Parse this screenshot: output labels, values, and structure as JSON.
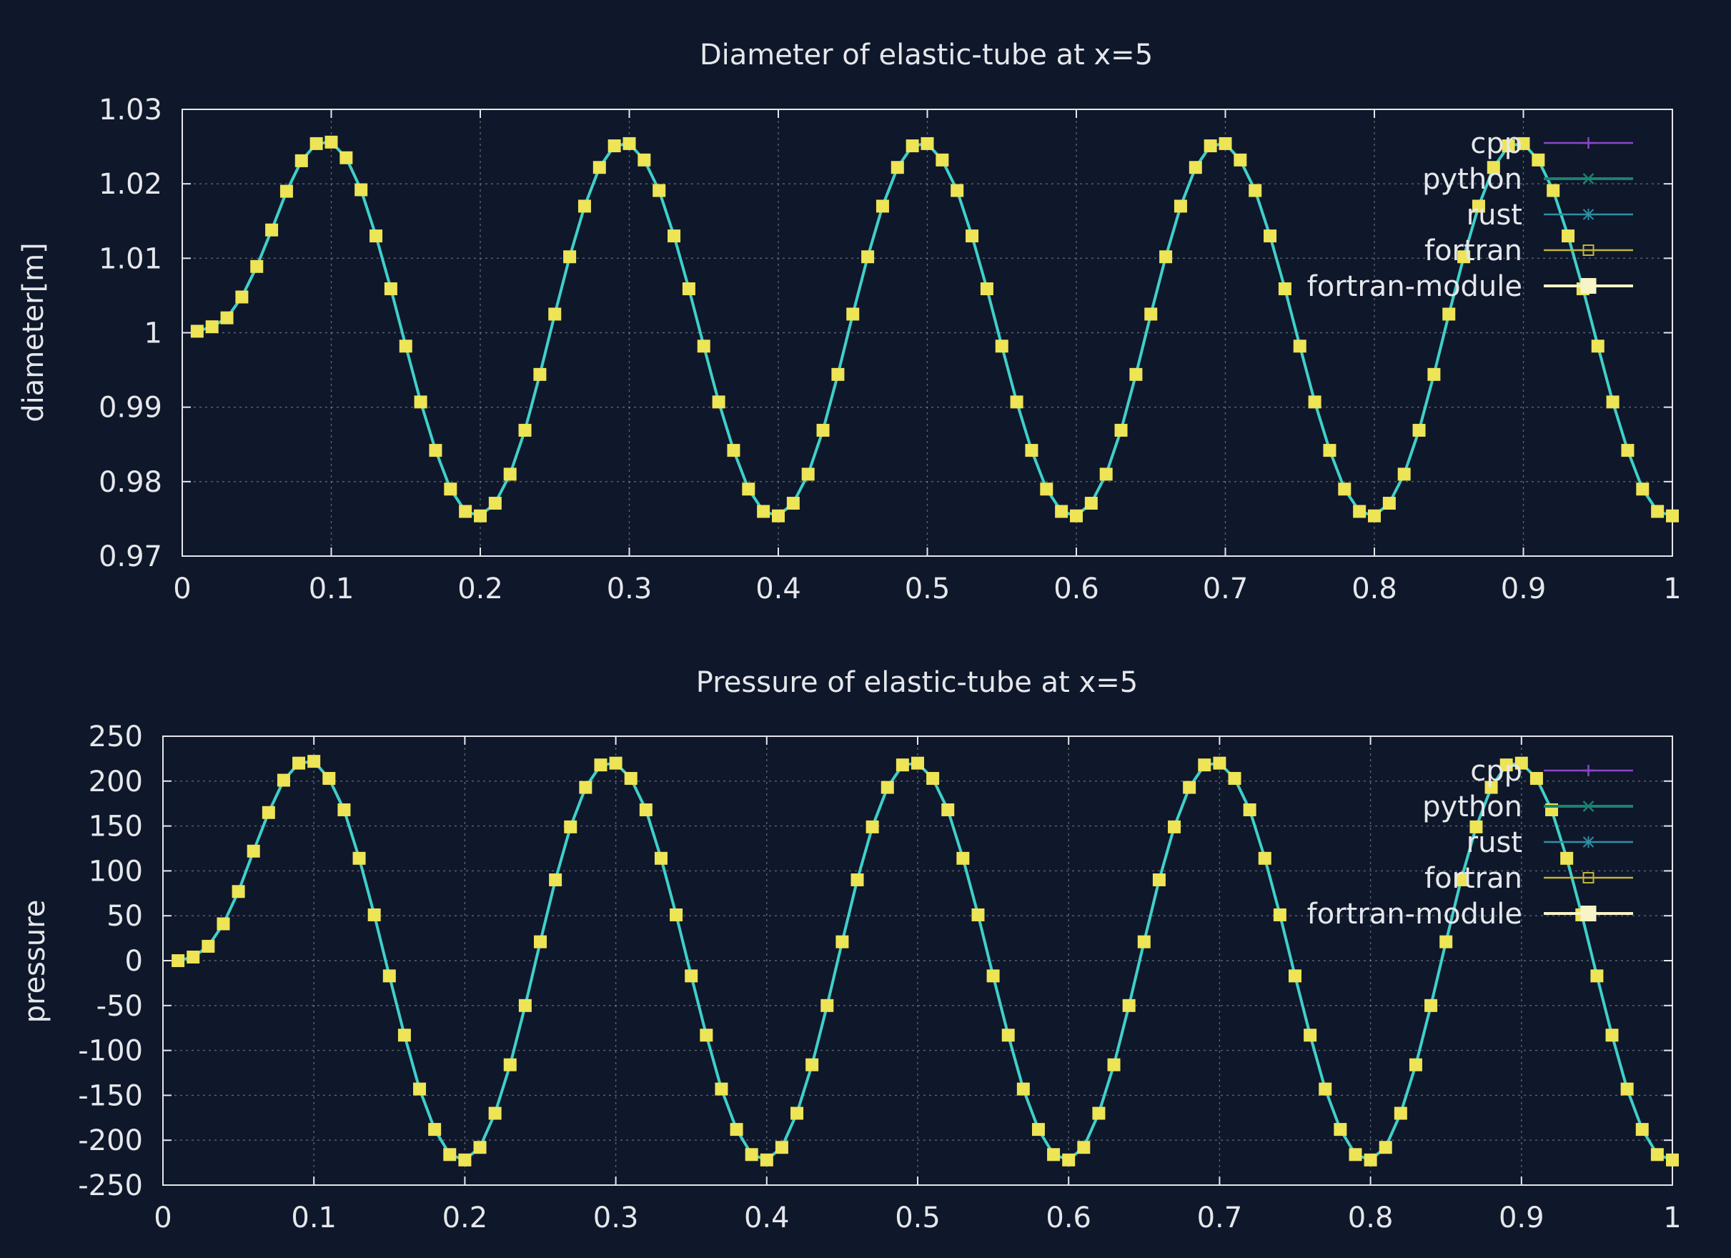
{
  "colors": {
    "background": "#0f172a",
    "text": "#e5e7eb",
    "axis": "#e5e7eb",
    "grid": "#9ca3af",
    "line": "#3fd0c9",
    "marker": "#ede456"
  },
  "chart_data": [
    {
      "type": "line",
      "title": "Diameter of elastic-tube at x=5",
      "xlabel": "",
      "ylabel": "diameter[m]",
      "xlim": [
        0,
        1
      ],
      "ylim": [
        0.97,
        1.03
      ],
      "xticks": [
        0,
        0.1,
        0.2,
        0.3,
        0.4,
        0.5,
        0.6,
        0.7,
        0.8,
        0.9,
        1
      ],
      "xtick_labels": [
        "0",
        "0.1",
        "0.2",
        "0.3",
        "0.4",
        "0.5",
        "0.6",
        "0.7",
        "0.8",
        "0.9",
        "1"
      ],
      "yticks": [
        0.97,
        0.98,
        0.99,
        1,
        1.01,
        1.02,
        1.03
      ],
      "ytick_labels": [
        "0.97",
        "0.98",
        "0.99",
        "1",
        "1.01",
        "1.02",
        "1.03"
      ],
      "grid": true,
      "legend_position": "top-right",
      "legend": [
        {
          "name": "cpp",
          "color": "#8b45c9",
          "marker": "plus"
        },
        {
          "name": "python",
          "color": "#17846f",
          "marker": "cross"
        },
        {
          "name": "rust",
          "color": "#2e8fa3",
          "marker": "star"
        },
        {
          "name": "fortran",
          "color": "#c2b53a",
          "marker": "open-square"
        },
        {
          "name": "fortran-module",
          "color": "#f7f4c8",
          "marker": "filled-square"
        }
      ],
      "x": [
        0.01,
        0.02,
        0.03,
        0.04,
        0.05,
        0.06,
        0.07,
        0.08,
        0.09,
        0.1,
        0.11,
        0.12,
        0.13,
        0.14,
        0.15,
        0.16,
        0.17,
        0.18,
        0.19,
        0.2,
        0.21,
        0.22,
        0.23,
        0.24,
        0.25,
        0.26,
        0.27,
        0.28,
        0.29,
        0.3,
        0.31,
        0.32,
        0.33,
        0.34,
        0.35,
        0.36,
        0.37,
        0.38,
        0.39,
        0.4,
        0.41,
        0.42,
        0.43,
        0.44,
        0.45,
        0.46,
        0.47,
        0.48,
        0.49,
        0.5,
        0.51,
        0.52,
        0.53,
        0.54,
        0.55,
        0.56,
        0.57,
        0.58,
        0.59,
        0.6,
        0.61,
        0.62,
        0.63,
        0.64,
        0.65,
        0.66,
        0.67,
        0.68,
        0.69,
        0.7,
        0.71,
        0.72,
        0.73,
        0.74,
        0.75,
        0.76,
        0.77,
        0.78,
        0.79,
        0.8,
        0.81,
        0.82,
        0.83,
        0.84,
        0.85,
        0.86,
        0.87,
        0.88,
        0.89,
        0.9,
        0.91,
        0.92,
        0.93,
        0.94,
        0.95,
        0.96,
        0.97,
        0.98,
        0.99,
        1.0
      ],
      "series": [
        {
          "name": "fortran-module",
          "values": [
            1.0002,
            1.0008,
            1.002,
            1.0048,
            1.0089,
            1.0138,
            1.019,
            1.0231,
            1.0254,
            1.0256,
            1.0235,
            1.0192,
            1.013,
            1.0059,
            0.9982,
            0.9907,
            0.9842,
            0.979,
            0.976,
            0.9754,
            0.9771,
            0.981,
            0.9869,
            0.9944,
            1.0025,
            1.0102,
            1.017,
            1.0222,
            1.0251,
            1.0254,
            1.0232,
            1.0191,
            1.013,
            1.0059,
            0.9982,
            0.9907,
            0.9842,
            0.979,
            0.976,
            0.9754,
            0.9771,
            0.981,
            0.9869,
            0.9944,
            1.0025,
            1.0102,
            1.017,
            1.0222,
            1.0251,
            1.0254,
            1.0232,
            1.0191,
            1.013,
            1.0059,
            0.9982,
            0.9907,
            0.9842,
            0.979,
            0.976,
            0.9754,
            0.9771,
            0.981,
            0.9869,
            0.9944,
            1.0025,
            1.0102,
            1.017,
            1.0222,
            1.0251,
            1.0254,
            1.0232,
            1.0191,
            1.013,
            1.0059,
            0.9982,
            0.9907,
            0.9842,
            0.979,
            0.976,
            0.9754,
            0.9771,
            0.981,
            0.9869,
            0.9944,
            1.0025,
            1.0102,
            1.017,
            1.0222,
            1.0251,
            1.0254,
            1.0232,
            1.0191,
            1.013,
            1.0059,
            0.9982,
            0.9907,
            0.9842,
            0.979,
            0.976,
            0.9754
          ]
        }
      ]
    },
    {
      "type": "line",
      "title": "Pressure of elastic-tube at x=5",
      "xlabel": "",
      "ylabel": "pressure",
      "xlim": [
        0,
        1
      ],
      "ylim": [
        -250,
        250
      ],
      "xticks": [
        0,
        0.1,
        0.2,
        0.3,
        0.4,
        0.5,
        0.6,
        0.7,
        0.8,
        0.9,
        1
      ],
      "xtick_labels": [
        "0",
        "0.1",
        "0.2",
        "0.3",
        "0.4",
        "0.5",
        "0.6",
        "0.7",
        "0.8",
        "0.9",
        "1"
      ],
      "yticks": [
        -250,
        -200,
        -150,
        -100,
        -50,
        0,
        50,
        100,
        150,
        200,
        250
      ],
      "ytick_labels": [
        "-250",
        "-200",
        "-150",
        "-100",
        "-50",
        "0",
        "50",
        "100",
        "150",
        "200",
        "250"
      ],
      "grid": true,
      "legend_position": "top-right",
      "legend": [
        {
          "name": "cpp",
          "color": "#8b45c9",
          "marker": "plus"
        },
        {
          "name": "python",
          "color": "#17846f",
          "marker": "cross"
        },
        {
          "name": "rust",
          "color": "#2e8fa3",
          "marker": "star"
        },
        {
          "name": "fortran",
          "color": "#c2b53a",
          "marker": "open-square"
        },
        {
          "name": "fortran-module",
          "color": "#f7f4c8",
          "marker": "filled-square"
        }
      ],
      "x": [
        0.01,
        0.02,
        0.03,
        0.04,
        0.05,
        0.06,
        0.07,
        0.08,
        0.09,
        0.1,
        0.11,
        0.12,
        0.13,
        0.14,
        0.15,
        0.16,
        0.17,
        0.18,
        0.19,
        0.2,
        0.21,
        0.22,
        0.23,
        0.24,
        0.25,
        0.26,
        0.27,
        0.28,
        0.29,
        0.3,
        0.31,
        0.32,
        0.33,
        0.34,
        0.35,
        0.36,
        0.37,
        0.38,
        0.39,
        0.4,
        0.41,
        0.42,
        0.43,
        0.44,
        0.45,
        0.46,
        0.47,
        0.48,
        0.49,
        0.5,
        0.51,
        0.52,
        0.53,
        0.54,
        0.55,
        0.56,
        0.57,
        0.58,
        0.59,
        0.6,
        0.61,
        0.62,
        0.63,
        0.64,
        0.65,
        0.66,
        0.67,
        0.68,
        0.69,
        0.7,
        0.71,
        0.72,
        0.73,
        0.74,
        0.75,
        0.76,
        0.77,
        0.78,
        0.79,
        0.8,
        0.81,
        0.82,
        0.83,
        0.84,
        0.85,
        0.86,
        0.87,
        0.88,
        0.89,
        0.9,
        0.91,
        0.92,
        0.93,
        0.94,
        0.95,
        0.96,
        0.97,
        0.98,
        0.99,
        1.0
      ],
      "series": [
        {
          "name": "fortran-module",
          "values": [
            0,
            4,
            16,
            41,
            77,
            122,
            165,
            201,
            220,
            222,
            203,
            168,
            114,
            51,
            -17,
            -83,
            -143,
            -188,
            -216,
            -222,
            -208,
            -170,
            -116,
            -50,
            21,
            90,
            149,
            193,
            218,
            220,
            203,
            168,
            114,
            51,
            -17,
            -83,
            -143,
            -188,
            -216,
            -222,
            -208,
            -170,
            -116,
            -50,
            21,
            90,
            149,
            193,
            218,
            220,
            203,
            168,
            114,
            51,
            -17,
            -83,
            -143,
            -188,
            -216,
            -222,
            -208,
            -170,
            -116,
            -50,
            21,
            90,
            149,
            193,
            218,
            220,
            203,
            168,
            114,
            51,
            -17,
            -83,
            -143,
            -188,
            -216,
            -222,
            -208,
            -170,
            -116,
            -50,
            21,
            90,
            149,
            193,
            218,
            220,
            203,
            168,
            114,
            51,
            -17,
            -83,
            -143,
            -188,
            -216,
            -222
          ]
        }
      ]
    }
  ]
}
